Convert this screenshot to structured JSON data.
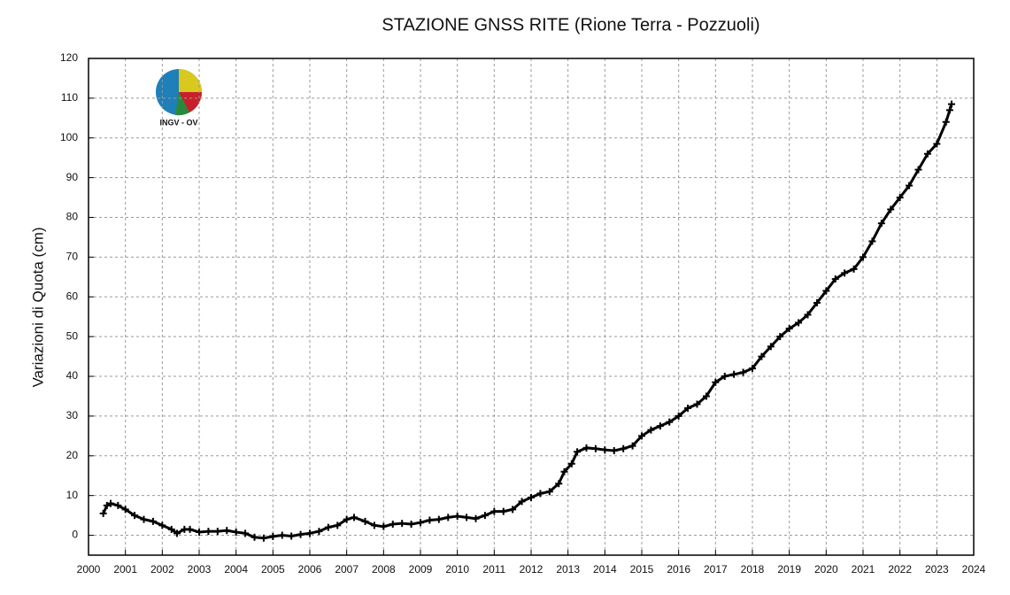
{
  "chart_data": {
    "type": "line",
    "title": "STAZIONE GNSS RITE (Rione Terra - Pozzuoli)",
    "y_label": "Variazioni di Quota (cm)",
    "logo_text": "INGV - OV",
    "marker": "+",
    "color": "#000000",
    "grid": true,
    "xlim": [
      2000,
      2024
    ],
    "ylim": [
      -5,
      120
    ],
    "xticks": [
      2000,
      2001,
      2002,
      2003,
      2004,
      2005,
      2006,
      2007,
      2008,
      2009,
      2010,
      2011,
      2012,
      2013,
      2014,
      2015,
      2016,
      2017,
      2018,
      2019,
      2020,
      2021,
      2022,
      2023,
      2024
    ],
    "yticks": [
      0,
      10,
      20,
      30,
      40,
      50,
      60,
      70,
      80,
      90,
      100,
      110,
      120
    ],
    "x": [
      2000.4,
      2000.5,
      2000.6,
      2000.8,
      2001.0,
      2001.25,
      2001.5,
      2001.75,
      2002.0,
      2002.25,
      2002.4,
      2002.6,
      2002.75,
      2003.0,
      2003.25,
      2003.5,
      2003.75,
      2004.0,
      2004.25,
      2004.5,
      2004.75,
      2005.0,
      2005.25,
      2005.5,
      2005.75,
      2006.0,
      2006.25,
      2006.5,
      2006.75,
      2007.0,
      2007.2,
      2007.5,
      2007.75,
      2008.0,
      2008.25,
      2008.5,
      2008.75,
      2009.0,
      2009.25,
      2009.5,
      2009.75,
      2010.0,
      2010.25,
      2010.5,
      2010.75,
      2011.0,
      2011.25,
      2011.5,
      2011.75,
      2012.0,
      2012.25,
      2012.5,
      2012.75,
      2012.9,
      2013.1,
      2013.25,
      2013.5,
      2013.75,
      2014.0,
      2014.25,
      2014.5,
      2014.75,
      2015.0,
      2015.25,
      2015.5,
      2015.75,
      2016.0,
      2016.25,
      2016.5,
      2016.75,
      2017.0,
      2017.25,
      2017.5,
      2017.75,
      2018.0,
      2018.25,
      2018.5,
      2018.75,
      2019.0,
      2019.25,
      2019.5,
      2019.75,
      2020.0,
      2020.25,
      2020.5,
      2020.75,
      2021.0,
      2021.25,
      2021.5,
      2021.75,
      2022.0,
      2022.25,
      2022.5,
      2022.75,
      2023.0,
      2023.25,
      2023.35,
      2023.4
    ],
    "values": [
      5.5,
      7.5,
      8,
      7.5,
      6.5,
      5,
      4,
      3.5,
      2.5,
      1.5,
      0.5,
      1.5,
      1.5,
      0.8,
      1,
      1,
      1.2,
      0.8,
      0.5,
      -0.5,
      -0.7,
      -0.3,
      0,
      -0.2,
      0.2,
      0.5,
      1,
      2,
      2.5,
      4,
      4.5,
      3.5,
      2.5,
      2.2,
      2.8,
      3,
      2.8,
      3.2,
      3.8,
      4,
      4.5,
      4.8,
      4.5,
      4.2,
      5,
      6,
      6,
      6.5,
      8.5,
      9.5,
      10.5,
      11,
      13,
      16,
      18,
      21,
      22,
      21.8,
      21.5,
      21.3,
      21.8,
      22.5,
      25,
      26.5,
      27.5,
      28.5,
      30,
      32,
      33,
      35,
      38.5,
      40,
      40.5,
      41,
      42,
      45,
      47.5,
      50,
      52,
      53.5,
      55.5,
      58.5,
      61.5,
      64.5,
      66,
      67,
      70,
      74,
      78.5,
      82,
      85,
      88,
      92,
      96,
      98.5,
      104,
      107,
      108.5
    ]
  }
}
